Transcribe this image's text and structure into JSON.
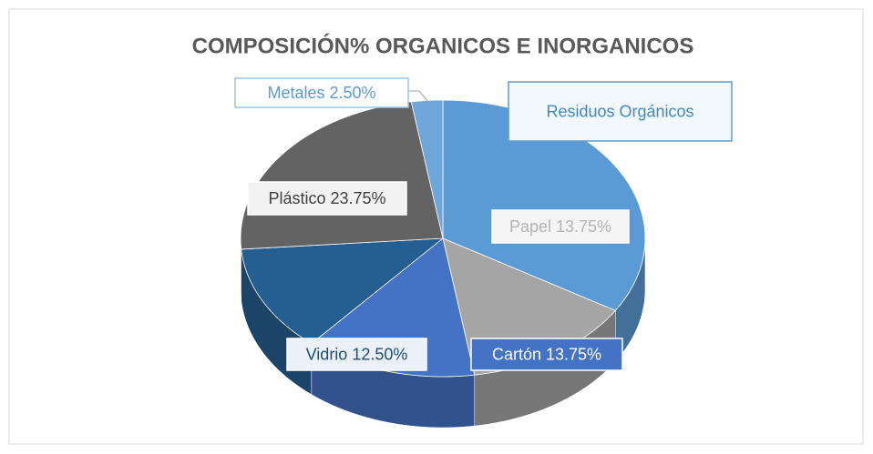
{
  "chart_data": {
    "type": "pie3d",
    "title": "COMPOSICIÓN% ORGANICOS E INORGANICOS",
    "values": [
      33.75,
      13.75,
      13.75,
      12.5,
      23.75,
      2.5
    ],
    "value_labels": [
      "Residuos Orgánicos",
      "Papel 13.75%",
      "Cartón 13.75%",
      "Vidrio 12.50%",
      "Plástico 23.75%",
      "Metales 2.50%"
    ],
    "colors": [
      "#5b9bd5",
      "#a5a5a5",
      "#4472c4",
      "#255e91",
      "#636363",
      "#6ea6da"
    ]
  }
}
